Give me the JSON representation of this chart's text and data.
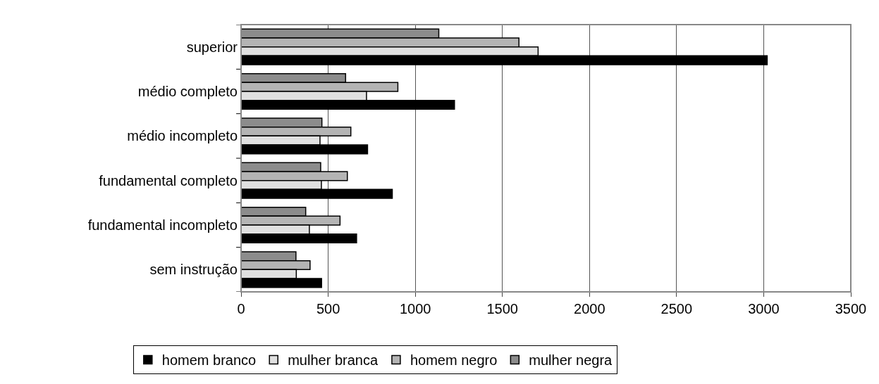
{
  "chart_data": {
    "type": "bar",
    "orientation": "horizontal",
    "categories": [
      "superior",
      "médio completo",
      "médio incompleto",
      "fundamental completo",
      "fundamental incompleto",
      "sem instrução"
    ],
    "series": [
      {
        "name": "homem branco",
        "color": "#000000",
        "values": [
          3020,
          1225,
          726,
          868,
          663,
          462
        ]
      },
      {
        "name": "mulher branca",
        "color": "#e0e0e0",
        "values": [
          1705,
          720,
          453,
          461,
          392,
          317
        ]
      },
      {
        "name": "homem negro",
        "color": "#b4b4b4",
        "values": [
          1595,
          900,
          630,
          610,
          568,
          396
        ]
      },
      {
        "name": "mulher negra",
        "color": "#8c8c8c",
        "values": [
          1135,
          600,
          464,
          457,
          371,
          315
        ]
      }
    ],
    "xlim": [
      0,
      3500
    ],
    "xticks": [
      0,
      500,
      1000,
      1500,
      2000,
      2500,
      3000,
      3500
    ],
    "grid": "x",
    "legend": "bottom"
  }
}
